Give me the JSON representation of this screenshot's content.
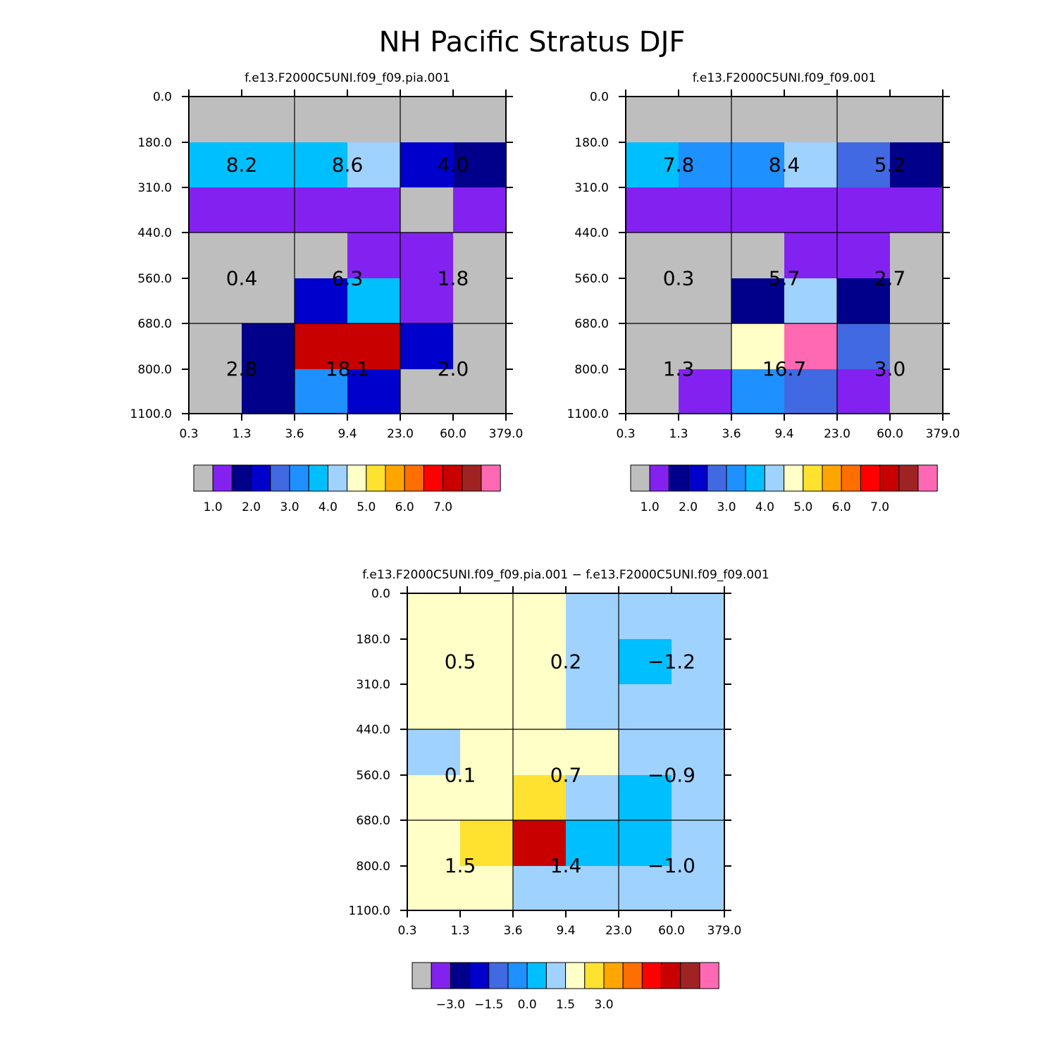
{
  "title": "NH Pacific Stratus DJF",
  "colors": {
    "palette": [
      "#bebebe",
      "#8322f0",
      "#00008b",
      "#0000cd",
      "#4169e1",
      "#1e90ff",
      "#00bfff",
      "#a0d2ff",
      "#ffffc8",
      "#ffe130",
      "#ffa500",
      "#ff6e00",
      "#ff0000",
      "#c80000",
      "#a02323",
      "#ff69b4"
    ]
  },
  "chart_data": [
    {
      "type": "heatmap",
      "title": "f.e13.F2000C5UNI.f09_f09.pia.001",
      "x_tick_labels": [
        "0.3",
        "1.3",
        "3.6",
        "9.4",
        "23.0",
        "60.0",
        "379.0"
      ],
      "y_tick_labels": [
        "0.0",
        "180.0",
        "310.0",
        "440.0",
        "560.0",
        "680.0",
        "800.0",
        "1100.0"
      ],
      "grid": [
        [
          0,
          0,
          0,
          0,
          0,
          0
        ],
        [
          6,
          6,
          6,
          7,
          3,
          2
        ],
        [
          1,
          1,
          1,
          1,
          0,
          1
        ],
        [
          0,
          0,
          0,
          1,
          1,
          0
        ],
        [
          0,
          0,
          3,
          6,
          1,
          0
        ],
        [
          0,
          2,
          13,
          13,
          3,
          0
        ],
        [
          0,
          2,
          5,
          3,
          0,
          0
        ]
      ],
      "group_labels": [
        [
          "8.2",
          "8.6",
          "4.0"
        ],
        [
          "0.4",
          "6.3",
          "1.8"
        ],
        [
          "2.8",
          "18.1",
          "2.0"
        ]
      ],
      "colorbar_labels": [
        "1.0",
        "2.0",
        "3.0",
        "4.0",
        "5.0",
        "6.0",
        "7.0"
      ]
    },
    {
      "type": "heatmap",
      "title": "f.e13.F2000C5UNI.f09_f09.001",
      "x_tick_labels": [
        "0.3",
        "1.3",
        "3.6",
        "9.4",
        "23.0",
        "60.0",
        "379.0"
      ],
      "y_tick_labels": [
        "0.0",
        "180.0",
        "310.0",
        "440.0",
        "560.0",
        "680.0",
        "800.0",
        "1100.0"
      ],
      "grid": [
        [
          0,
          0,
          0,
          0,
          0,
          0
        ],
        [
          6,
          5,
          5,
          7,
          4,
          2
        ],
        [
          1,
          1,
          1,
          1,
          1,
          1
        ],
        [
          0,
          0,
          0,
          1,
          1,
          0
        ],
        [
          0,
          0,
          2,
          7,
          2,
          0
        ],
        [
          0,
          0,
          8,
          15,
          4,
          0
        ],
        [
          0,
          1,
          5,
          4,
          1,
          0
        ]
      ],
      "group_labels": [
        [
          "7.8",
          "8.4",
          "5.2"
        ],
        [
          "0.3",
          "5.7",
          "2.7"
        ],
        [
          "1.3",
          "16.7",
          "3.0"
        ]
      ],
      "colorbar_labels": [
        "1.0",
        "2.0",
        "3.0",
        "4.0",
        "5.0",
        "6.0",
        "7.0"
      ]
    },
    {
      "type": "heatmap",
      "title": "f.e13.F2000C5UNI.f09_f09.pia.001 − f.e13.F2000C5UNI.f09_f09.001",
      "x_tick_labels": [
        "0.3",
        "1.3",
        "3.6",
        "9.4",
        "23.0",
        "60.0",
        "379.0"
      ],
      "y_tick_labels": [
        "0.0",
        "180.0",
        "310.0",
        "440.0",
        "560.0",
        "680.0",
        "800.0",
        "1100.0"
      ],
      "grid": [
        [
          8,
          8,
          8,
          7,
          7,
          7
        ],
        [
          8,
          8,
          8,
          7,
          6,
          7
        ],
        [
          8,
          8,
          8,
          7,
          7,
          7
        ],
        [
          7,
          8,
          8,
          8,
          7,
          7
        ],
        [
          8,
          8,
          9,
          7,
          6,
          7
        ],
        [
          8,
          9,
          13,
          6,
          6,
          7
        ],
        [
          8,
          8,
          7,
          7,
          7,
          7
        ]
      ],
      "group_labels": [
        [
          "0.5",
          "0.2",
          "−1.2"
        ],
        [
          "0.1",
          "0.7",
          "−0.9"
        ],
        [
          "1.5",
          "1.4",
          "−1.0"
        ]
      ],
      "colorbar_labels": [
        "−3.0",
        "−1.5",
        "0.0",
        "1.5",
        "3.0"
      ]
    }
  ]
}
